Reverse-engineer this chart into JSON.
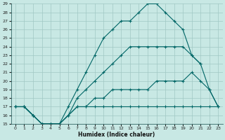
{
  "xlabel": "Humidex (Indice chaleur)",
  "background_color": "#c8e8e4",
  "grid_color": "#a0c8c4",
  "line_color": "#006666",
  "xlim": [
    -0.5,
    23.5
  ],
  "ylim": [
    15,
    29
  ],
  "xtick_labels": [
    "0",
    "1",
    "2",
    "3",
    "4",
    "5",
    "6",
    "7",
    "8",
    "9",
    "10",
    "11",
    "12",
    "13",
    "14",
    "15",
    "16",
    "17",
    "18",
    "19",
    "20",
    "21",
    "22",
    "23"
  ],
  "xticks": [
    0,
    1,
    2,
    3,
    4,
    5,
    6,
    7,
    8,
    9,
    10,
    11,
    12,
    13,
    14,
    15,
    16,
    17,
    18,
    19,
    20,
    21,
    22,
    23
  ],
  "yticks": [
    15,
    16,
    17,
    18,
    19,
    20,
    21,
    22,
    23,
    24,
    25,
    26,
    27,
    28,
    29
  ],
  "line1_x": [
    0,
    1,
    2,
    3,
    4,
    5,
    6,
    7,
    8,
    9,
    10,
    11,
    12,
    13,
    14,
    15,
    16,
    17,
    18,
    19,
    20,
    21,
    22,
    23
  ],
  "line1_y": [
    17,
    17,
    16,
    15,
    15,
    15,
    16,
    17,
    17,
    17,
    17,
    17,
    17,
    17,
    17,
    17,
    17,
    17,
    17,
    17,
    17,
    17,
    17,
    17
  ],
  "line2_x": [
    0,
    1,
    2,
    3,
    4,
    5,
    6,
    7,
    8,
    9,
    10,
    11,
    12,
    13,
    14,
    15,
    16,
    17,
    18,
    19,
    20,
    21,
    22,
    23
  ],
  "line2_y": [
    17,
    17,
    16,
    15,
    15,
    15,
    16,
    17,
    17,
    18,
    18,
    19,
    19,
    19,
    19,
    19,
    20,
    20,
    20,
    20,
    21,
    20,
    19,
    17
  ],
  "line3_x": [
    0,
    1,
    2,
    3,
    4,
    5,
    6,
    7,
    8,
    9,
    10,
    11,
    12,
    13,
    14,
    15,
    16,
    17,
    18,
    19,
    20,
    21,
    22,
    23
  ],
  "line3_y": [
    17,
    17,
    16,
    15,
    15,
    15,
    16,
    18,
    19,
    20,
    21,
    22,
    23,
    24,
    24,
    24,
    24,
    24,
    24,
    24,
    23,
    22,
    19,
    17
  ],
  "line4_x": [
    0,
    1,
    2,
    3,
    4,
    5,
    6,
    7,
    8,
    9,
    10,
    11,
    12,
    13,
    14,
    15,
    16,
    17,
    18,
    19,
    20,
    21
  ],
  "line4_y": [
    17,
    17,
    16,
    15,
    15,
    15,
    17,
    19,
    21,
    23,
    25,
    26,
    27,
    27,
    28,
    29,
    29,
    28,
    27,
    26,
    23,
    22
  ]
}
